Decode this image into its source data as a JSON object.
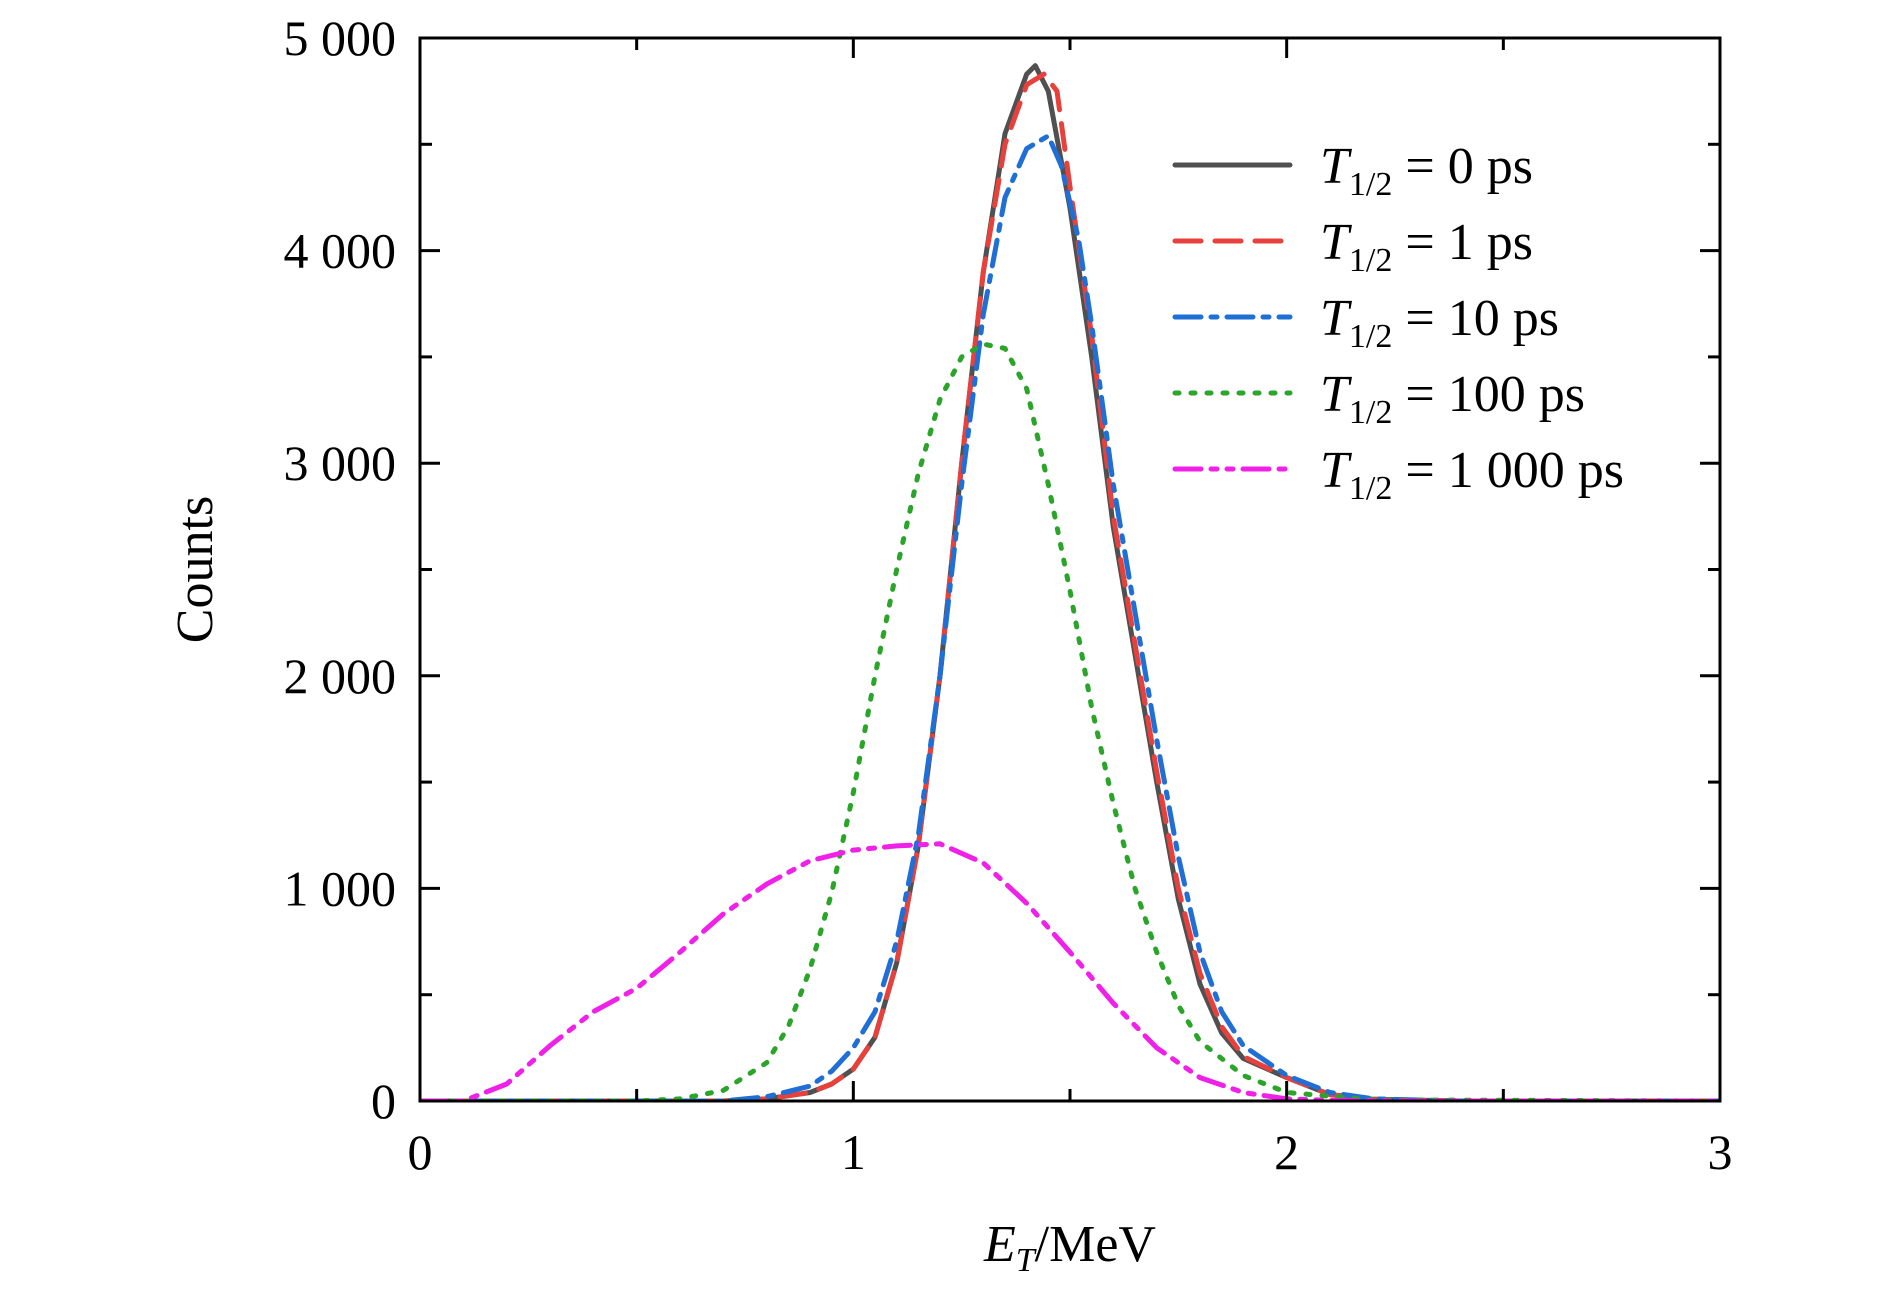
{
  "chart_data": {
    "type": "line",
    "xlabel": {
      "main": "E",
      "sub": "T",
      "rest": "/MeV"
    },
    "ylabel": "Counts",
    "xlim": [
      0,
      3
    ],
    "ylim": [
      0,
      5000
    ],
    "x_ticks": [
      0,
      1,
      2,
      3
    ],
    "x_tick_labels": [
      "0",
      "1",
      "2",
      "3"
    ],
    "y_ticks": [
      0,
      1000,
      2000,
      3000,
      4000,
      5000
    ],
    "y_tick_labels": [
      "0",
      "1 000",
      "2 000",
      "3 000",
      "4 000",
      "5 000"
    ],
    "grid": false,
    "legend_position": "top-right",
    "series": [
      {
        "name_main": "T",
        "name_sub": "1/2",
        "name_rest": " = 0 ps",
        "color": "#505050",
        "style": "solid",
        "x": [
          0,
          0.7,
          0.8,
          0.9,
          0.95,
          1.0,
          1.05,
          1.1,
          1.15,
          1.2,
          1.25,
          1.3,
          1.35,
          1.4,
          1.42,
          1.45,
          1.5,
          1.55,
          1.6,
          1.65,
          1.7,
          1.75,
          1.8,
          1.85,
          1.9,
          2.0,
          2.1,
          2.2,
          2.4,
          3.0
        ],
        "y": [
          0,
          0,
          10,
          40,
          80,
          150,
          300,
          650,
          1200,
          2000,
          3000,
          3900,
          4550,
          4830,
          4870,
          4750,
          4200,
          3500,
          2700,
          2100,
          1500,
          950,
          550,
          320,
          200,
          110,
          30,
          8,
          0,
          0
        ]
      },
      {
        "name_main": "T",
        "name_sub": "1/2",
        "name_rest": " = 1 ps",
        "color": "#e8413c",
        "style": "dashed",
        "x": [
          0,
          0.7,
          0.8,
          0.9,
          0.95,
          1.0,
          1.05,
          1.1,
          1.15,
          1.2,
          1.25,
          1.3,
          1.35,
          1.4,
          1.44,
          1.47,
          1.5,
          1.55,
          1.6,
          1.65,
          1.7,
          1.75,
          1.8,
          1.85,
          1.9,
          2.0,
          2.1,
          2.2,
          2.4,
          3.0
        ],
        "y": [
          0,
          0,
          10,
          40,
          80,
          150,
          300,
          650,
          1200,
          2000,
          3000,
          3900,
          4500,
          4780,
          4830,
          4750,
          4300,
          3600,
          2750,
          2150,
          1550,
          1000,
          600,
          350,
          210,
          110,
          30,
          8,
          0,
          0
        ]
      },
      {
        "name_main": "T",
        "name_sub": "1/2",
        "name_rest": " = 10 ps",
        "color": "#1f6fd6",
        "style": "dashdot",
        "x": [
          0,
          0.7,
          0.8,
          0.9,
          0.95,
          1.0,
          1.05,
          1.1,
          1.15,
          1.2,
          1.25,
          1.3,
          1.35,
          1.4,
          1.45,
          1.48,
          1.52,
          1.55,
          1.6,
          1.65,
          1.7,
          1.75,
          1.8,
          1.85,
          1.9,
          2.0,
          2.1,
          2.2,
          2.4,
          3.0
        ],
        "y": [
          0,
          0,
          20,
          70,
          140,
          250,
          420,
          750,
          1250,
          2000,
          2900,
          3700,
          4250,
          4480,
          4540,
          4400,
          4050,
          3650,
          2900,
          2300,
          1700,
          1150,
          700,
          420,
          260,
          120,
          40,
          10,
          0,
          0
        ]
      },
      {
        "name_main": "T",
        "name_sub": "1/2",
        "name_rest": " = 100 ps",
        "color": "#2aa52a",
        "style": "dotted",
        "x": [
          0,
          0.5,
          0.6,
          0.7,
          0.8,
          0.85,
          0.9,
          0.95,
          1.0,
          1.05,
          1.1,
          1.15,
          1.2,
          1.25,
          1.3,
          1.35,
          1.4,
          1.45,
          1.5,
          1.55,
          1.6,
          1.65,
          1.7,
          1.75,
          1.8,
          1.9,
          2.0,
          2.2,
          3.0
        ],
        "y": [
          0,
          0,
          10,
          50,
          180,
          350,
          620,
          980,
          1450,
          2000,
          2500,
          2950,
          3300,
          3500,
          3560,
          3540,
          3350,
          2900,
          2400,
          1850,
          1400,
          1000,
          700,
          450,
          280,
          120,
          40,
          5,
          0
        ]
      },
      {
        "name_main": "T",
        "name_sub": "1/2",
        "name_rest": " = 1 000 ps",
        "color": "#f020e8",
        "style": "dashdotdot",
        "x": [
          0,
          0.1,
          0.2,
          0.3,
          0.4,
          0.5,
          0.6,
          0.7,
          0.8,
          0.9,
          1.0,
          1.1,
          1.2,
          1.3,
          1.4,
          1.5,
          1.6,
          1.7,
          1.8,
          1.9,
          2.0,
          2.1,
          2.3,
          3.0
        ],
        "y": [
          0,
          0,
          80,
          260,
          420,
          530,
          700,
          880,
          1020,
          1130,
          1180,
          1200,
          1210,
          1120,
          930,
          700,
          460,
          250,
          110,
          40,
          10,
          3,
          0,
          0
        ]
      }
    ]
  }
}
